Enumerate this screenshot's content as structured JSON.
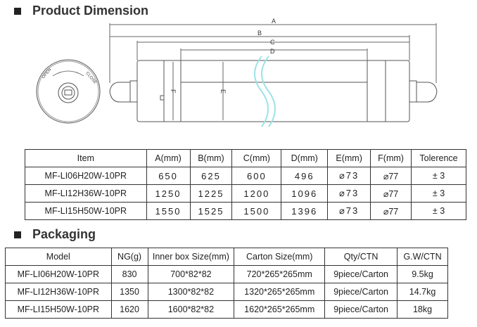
{
  "sections": {
    "dimension_title": "Product Dimension",
    "packaging_title": "Packaging"
  },
  "diagram": {
    "labels": [
      "A",
      "B",
      "C",
      "D",
      "E",
      "F"
    ],
    "cap_text_left": "OPEN",
    "cap_text_right": "CLOSE",
    "break_color": "#9ee3e6"
  },
  "dimension_table": {
    "headers": [
      "Item",
      "A(mm)",
      "B(mm)",
      "C(mm)",
      "D(mm)",
      "E(mm)",
      "F(mm)",
      "Tolerence"
    ],
    "rows": [
      [
        "MF-LI06H20W-10PR",
        "650",
        "625",
        "600",
        "496",
        "⌀73",
        "⌀77",
        "± 3"
      ],
      [
        "MF-LI12H36W-10PR",
        "1250",
        "1225",
        "1200",
        "1096",
        "⌀73",
        "⌀77",
        "± 3"
      ],
      [
        "MF-LI15H50W-10PR",
        "1550",
        "1525",
        "1500",
        "1396",
        "⌀73",
        "⌀77",
        "± 3"
      ]
    ]
  },
  "packaging_table": {
    "headers": [
      "Model",
      "NG(g)",
      "Inner box Size(mm)",
      "Carton Size(mm)",
      "Qty/CTN",
      "G.W/CTN"
    ],
    "rows": [
      [
        "MF-LI06H20W-10PR",
        "830",
        "700*82*82",
        "720*265*265mm",
        "9piece/Carton",
        "9.5kg"
      ],
      [
        "MF-LI12H36W-10PR",
        "1350",
        "1300*82*82",
        "1320*265*265mm",
        "9piece/Carton",
        "14.7kg"
      ],
      [
        "MF-LI15H50W-10PR",
        "1620",
        "1600*82*82",
        "1620*265*265mm",
        "9piece/Carton",
        "18kg"
      ]
    ]
  }
}
